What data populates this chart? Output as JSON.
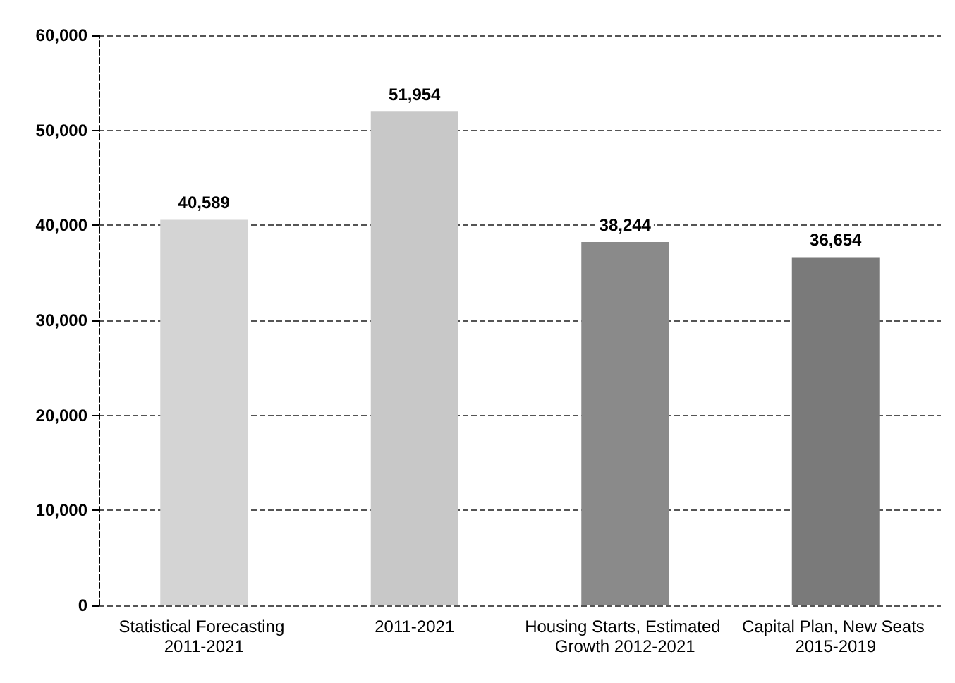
{
  "chart_data": {
    "type": "bar",
    "categories": [
      "Statistical Forecasting 2011-2021",
      "2011-2021",
      "Housing Starts, Estimated Growth 2012-2021",
      "Capital Plan, New Seats 2015-2019"
    ],
    "values": [
      40589,
      51954,
      38244,
      36654
    ],
    "value_labels": [
      "40,589",
      "51,954",
      "38,244",
      "36,654"
    ],
    "colors": [
      "#d4d4d4",
      "#c8c8c8",
      "#8a8a8a",
      "#7a7a7a"
    ],
    "ylim": [
      0,
      60000
    ],
    "yticks": [
      {
        "value": 0,
        "label": "0"
      },
      {
        "value": 10000,
        "label": "10,000"
      },
      {
        "value": 20000,
        "label": "20,000"
      },
      {
        "value": 30000,
        "label": "30,000"
      },
      {
        "value": 40000,
        "label": "40,000"
      },
      {
        "value": 50000,
        "label": "50,000"
      },
      {
        "value": 60000,
        "label": "60,000"
      }
    ],
    "grid": "y"
  }
}
